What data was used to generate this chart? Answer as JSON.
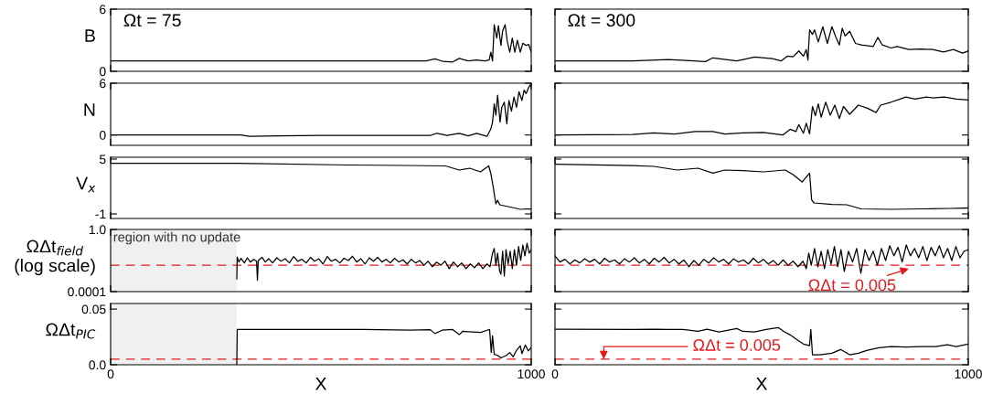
{
  "chart_data": [
    {
      "type": "line",
      "ylabel": "B",
      "annotations": [
        "Ωt = 75"
      ],
      "xlim": [
        0,
        1000
      ],
      "xticks": [
        0,
        1000
      ],
      "ylim": [
        0,
        6
      ],
      "yticks": [
        0,
        6
      ],
      "tick_labels": "y",
      "x": [
        0,
        300,
        600,
        700,
        750,
        771,
        790,
        813,
        829,
        850,
        870,
        890,
        900,
        904,
        908,
        912,
        918,
        922,
        928,
        932,
        938,
        943,
        949,
        955,
        961,
        967,
        974,
        980,
        988,
        994,
        1000
      ],
      "series": [
        {
          "color": "#000000",
          "values": [
            1,
            1,
            1,
            1,
            1,
            1.2,
            0.95,
            0.9,
            1.25,
            1,
            1.1,
            1,
            1.1,
            1.85,
            1,
            4.5,
            3.2,
            4.4,
            2.5,
            3.9,
            4.5,
            2.9,
            1.85,
            3.2,
            1.85,
            3,
            1.85,
            2.7,
            2.5,
            2.6,
            1.85
          ]
        }
      ]
    },
    {
      "type": "line",
      "annotations": [
        "Ωt = 300"
      ],
      "xlim": [
        0,
        1000
      ],
      "xticks": [
        0,
        1000
      ],
      "ylim": [
        0,
        6
      ],
      "yticks": [
        0,
        6
      ],
      "tick_labels": false,
      "x": [
        0,
        188,
        231,
        274,
        364,
        382,
        440,
        483,
        526,
        547,
        562,
        576,
        590,
        601,
        608,
        612,
        616,
        623,
        628,
        637,
        648,
        659,
        670,
        680,
        688,
        695,
        702,
        713,
        727,
        741,
        770,
        781,
        792,
        813,
        828,
        856,
        885,
        914,
        940,
        964,
        986,
        1000
      ],
      "series": [
        {
          "color": "#000000",
          "values": [
            1.0,
            1.0,
            1.08,
            1.14,
            0.94,
            1.3,
            1.0,
            1.37,
            1.23,
            1.0,
            1.46,
            1.4,
            1.96,
            1.46,
            2.1,
            1.08,
            4.0,
            3.57,
            4.0,
            2.84,
            4.3,
            2.69,
            4.3,
            3.27,
            2.54,
            4.15,
            3.42,
            3.86,
            2.69,
            2.54,
            2.4,
            3.27,
            2.54,
            2.25,
            2.4,
            2.1,
            2.16,
            2.1,
            1.87,
            2.1,
            1.75,
            1.96
          ]
        }
      ]
    },
    {
      "type": "line",
      "ylabel": "N",
      "xlim": [
        0,
        1000
      ],
      "xticks": [
        0,
        1000
      ],
      "ylim": [
        -1.2,
        6
      ],
      "yticks": [
        0,
        6
      ],
      "tick_labels": "y",
      "x": [
        0,
        300,
        309,
        330,
        400,
        500,
        600,
        700,
        760,
        776,
        800,
        829,
        850,
        870,
        895,
        904,
        908,
        912,
        916,
        920,
        926,
        930,
        936,
        942,
        947,
        953,
        959,
        965,
        971,
        978,
        983,
        988,
        993,
        1000
      ],
      "series": [
        {
          "color": "#000000",
          "values": [
            0,
            0,
            0,
            -0.15,
            -0.1,
            -0.05,
            -0.05,
            -0.05,
            -0.05,
            0.2,
            -0.05,
            0.2,
            -0.1,
            0.2,
            -0.15,
            0.7,
            1.5,
            3.6,
            2.3,
            4.6,
            1.5,
            3.2,
            3.8,
            1.3,
            4.0,
            2.75,
            4.4,
            3.2,
            5.0,
            4.0,
            5.2,
            4.8,
            5.4,
            6.0
          ]
        }
      ]
    },
    {
      "type": "line",
      "xlim": [
        0,
        1000
      ],
      "xticks": [
        0,
        1000
      ],
      "ylim": [
        -1.2,
        6
      ],
      "yticks": [
        0,
        6
      ],
      "tick_labels": false,
      "x": [
        0,
        188,
        239,
        289,
        339,
        382,
        411,
        454,
        504,
        551,
        569,
        583,
        590,
        601,
        608,
        616,
        623,
        630,
        637,
        644,
        655,
        666,
        677,
        688,
        698,
        713,
        734,
        756,
        777,
        788,
        813,
        835,
        849,
        871,
        899,
        914,
        942,
        971,
        1000
      ],
      "series": [
        {
          "color": "#000000",
          "values": [
            0,
            0.05,
            0.25,
            0.1,
            0.4,
            0.4,
            0.1,
            0.25,
            0.3,
            0,
            0.66,
            0.4,
            1.2,
            0.2,
            1.36,
            0.14,
            3.3,
            2.24,
            3.6,
            2.06,
            3.8,
            2.3,
            3.46,
            1.9,
            3.3,
            2.4,
            3.46,
            3.1,
            2.6,
            3.46,
            3.8,
            4.16,
            4.4,
            4.15,
            4.4,
            4.3,
            4.4,
            4.15,
            4.05
          ]
        }
      ]
    },
    {
      "type": "line",
      "ylabel": "V$_{x}$",
      "xlim": [
        0,
        1000
      ],
      "xticks": [
        0,
        1000
      ],
      "ylim": [
        -1.5,
        5.2
      ],
      "yticks": [
        -1,
        5
      ],
      "tick_labels": "y",
      "x": [
        0,
        300,
        565,
        700,
        796,
        829,
        854,
        879,
        899,
        904,
        910,
        913,
        916,
        920,
        925,
        935,
        945,
        960,
        975,
        990,
        1000
      ],
      "series": [
        {
          "color": "#000000",
          "values": [
            4.55,
            4.55,
            4.35,
            4.3,
            4.25,
            3.8,
            4.0,
            3.6,
            4.25,
            3.4,
            1.85,
            0.9,
            0.1,
            0.5,
            0.0,
            -0.1,
            -0.2,
            -0.35,
            -0.5,
            -0.45,
            -0.45
          ]
        }
      ]
    },
    {
      "type": "line",
      "xlim": [
        0,
        1000
      ],
      "xticks": [
        0,
        1000
      ],
      "ylim": [
        -1.5,
        5.2
      ],
      "yticks": [
        -1,
        5
      ],
      "tick_labels": false,
      "x": [
        0,
        188,
        239,
        296,
        346,
        382,
        411,
        454,
        504,
        557,
        576,
        598,
        616,
        621,
        627,
        670,
        706,
        741,
        813,
        885,
        957,
        1000
      ],
      "series": [
        {
          "color": "#000000",
          "values": [
            4.45,
            4.28,
            4.2,
            3.8,
            4.0,
            3.47,
            3.8,
            3.73,
            3.6,
            3.8,
            3.3,
            2.49,
            3.47,
            0.53,
            0.2,
            0.04,
            0.0,
            -0.45,
            -0.5,
            -0.45,
            -0.4,
            -0.35
          ]
        }
      ]
    },
    {
      "type": "line",
      "ylabel": "ΩΔt$_{field}$\n(log scale)",
      "log": "y",
      "xlim": [
        0,
        1000
      ],
      "xticks": [
        0,
        1000
      ],
      "ylim": [
        0.0001,
        1
      ],
      "yticks": [
        0.0001,
        {
          "value": 1,
          "label": "1.0"
        }
      ],
      "tick_labels": "y",
      "bands": [
        {
          "axis": "x",
          "from": 0,
          "to": 300,
          "label": "region with no update",
          "color": "#f0f0f0"
        }
      ],
      "ref_lines": [
        {
          "axis": "y",
          "value": 0.005,
          "color": "#e41a1c",
          "line_style": "dashed"
        }
      ],
      "x": [
        300,
        301,
        305,
        310,
        318,
        325,
        332,
        340,
        347,
        349,
        351,
        360,
        368,
        376,
        385,
        395,
        405,
        415,
        425,
        435,
        445,
        455,
        465,
        475,
        485,
        495,
        505,
        515,
        525,
        535,
        545,
        555,
        565,
        575,
        585,
        595,
        605,
        615,
        625,
        635,
        645,
        655,
        665,
        675,
        685,
        695,
        705,
        715,
        725,
        735,
        745,
        755,
        765,
        775,
        785,
        795,
        805,
        815,
        825,
        835,
        845,
        855,
        865,
        875,
        885,
        895,
        902,
        908,
        912,
        916,
        920,
        925,
        928,
        932,
        936,
        940,
        945,
        950,
        955,
        960,
        965,
        970,
        975,
        980,
        985,
        990,
        995,
        1000
      ],
      "series": [
        {
          "color": "#000000",
          "values": [
            0.00066,
            0.017,
            0.008,
            0.014,
            0.007,
            0.015,
            0.008,
            0.012,
            0.009,
            0.00054,
            0.01,
            0.016,
            0.008,
            0.013,
            0.007,
            0.015,
            0.009,
            0.013,
            0.007,
            0.018,
            0.009,
            0.012,
            0.007,
            0.016,
            0.009,
            0.013,
            0.006,
            0.018,
            0.009,
            0.012,
            0.007,
            0.014,
            0.01,
            0.019,
            0.008,
            0.013,
            0.006,
            0.015,
            0.009,
            0.016,
            0.008,
            0.012,
            0.007,
            0.014,
            0.008,
            0.011,
            0.006,
            0.012,
            0.007,
            0.01,
            0.005,
            0.009,
            0.004,
            0.008,
            0.005,
            0.009,
            0.003,
            0.008,
            0.004,
            0.007,
            0.003,
            0.006,
            0.0035,
            0.007,
            0.003,
            0.006,
            0.004,
            0.03,
            0.06,
            0.005,
            0.03,
            0.002,
            0.0013,
            0.04,
            0.001,
            0.05,
            0.006,
            0.04,
            0.003,
            0.05,
            0.005,
            0.08,
            0.01,
            0.1,
            0.02,
            0.13,
            0.03,
            0.05
          ]
        }
      ]
    },
    {
      "type": "line",
      "log": "y",
      "xlim": [
        0,
        1000
      ],
      "xticks": [
        0,
        1000
      ],
      "ylim": [
        0.0001,
        1
      ],
      "yticks": [
        0.0001,
        1
      ],
      "tick_labels": false,
      "ref_lines": [
        {
          "axis": "y",
          "value": 0.005,
          "color": "#e41a1c",
          "line_style": "dashed"
        }
      ],
      "annotations": [
        {
          "text": "ΩΔt = 0.005",
          "x": 856,
          "y": 0.003
        }
      ],
      "x": [
        0,
        12,
        24,
        36,
        48,
        60,
        72,
        84,
        96,
        108,
        120,
        132,
        144,
        156,
        168,
        180,
        192,
        204,
        216,
        228,
        240,
        252,
        264,
        276,
        288,
        300,
        312,
        324,
        336,
        348,
        360,
        372,
        384,
        396,
        408,
        420,
        432,
        444,
        456,
        468,
        480,
        492,
        504,
        516,
        528,
        540,
        552,
        564,
        576,
        588,
        600,
        608,
        614,
        620,
        628,
        636,
        644,
        652,
        660,
        668,
        676,
        684,
        692,
        700,
        710,
        720,
        730,
        740,
        750,
        760,
        770,
        780,
        790,
        800,
        810,
        820,
        830,
        840,
        850,
        860,
        870,
        880,
        890,
        900,
        910,
        920,
        930,
        940,
        950,
        960,
        970,
        980,
        990,
        1000
      ],
      "series": [
        {
          "color": "#000000",
          "values": [
            0.02,
            0.008,
            0.012,
            0.006,
            0.011,
            0.007,
            0.013,
            0.008,
            0.012,
            0.006,
            0.014,
            0.008,
            0.011,
            0.006,
            0.013,
            0.008,
            0.015,
            0.007,
            0.012,
            0.006,
            0.014,
            0.008,
            0.016,
            0.007,
            0.012,
            0.006,
            0.011,
            0.004,
            0.01,
            0.005,
            0.012,
            0.007,
            0.015,
            0.008,
            0.012,
            0.006,
            0.013,
            0.008,
            0.011,
            0.006,
            0.014,
            0.007,
            0.012,
            0.006,
            0.01,
            0.005,
            0.011,
            0.005,
            0.009,
            0.004,
            0.009,
            0.003,
            0.03,
            0.005,
            0.06,
            0.004,
            0.04,
            0.003,
            0.05,
            0.006,
            0.08,
            0.004,
            0.05,
            0.002,
            0.04,
            0.008,
            0.06,
            0.0015,
            0.05,
            0.01,
            0.04,
            0.005,
            0.06,
            0.01,
            0.09,
            0.02,
            0.07,
            0.008,
            0.1,
            0.02,
            0.06,
            0.015,
            0.08,
            0.01,
            0.07,
            0.02,
            0.09,
            0.015,
            0.06,
            0.01,
            0.08,
            0.015,
            0.04,
            0.05
          ]
        }
      ]
    },
    {
      "type": "line",
      "ylabel": "ΩΔt$_{PIC}$",
      "xlabel": "X",
      "xlim": [
        0,
        1000
      ],
      "xticks": [
        0,
        1000
      ],
      "ylim": [
        0,
        0.055
      ],
      "yticks": [
        {
          "value": 0,
          "label": "0.0"
        },
        0.05
      ],
      "bands": [
        {
          "axis": "x",
          "from": 0,
          "to": 300,
          "color": "#f0f0f0"
        }
      ],
      "ref_lines": [
        {
          "axis": "y",
          "value": 0.005,
          "color": "#e41a1c",
          "line_style": "dashed"
        }
      ],
      "x": [
        300,
        301,
        400,
        500,
        600,
        714,
        760,
        771,
        788,
        813,
        829,
        837,
        880,
        895,
        901,
        905,
        908,
        912,
        920,
        928,
        941,
        949,
        957,
        965,
        974,
        978,
        986,
        993,
        1000
      ],
      "series": [
        {
          "color": "#000000",
          "values": [
            0.0,
            0.0317,
            0.0317,
            0.0317,
            0.0317,
            0.031,
            0.0315,
            0.028,
            0.031,
            0.0317,
            0.027,
            0.03,
            0.029,
            0.031,
            0.0317,
            0.011,
            0.026,
            0.0093,
            0.0084,
            0.0062,
            0.0084,
            0.011,
            0.0071,
            0.013,
            0.017,
            0.01,
            0.0177,
            0.0124,
            0.0155
          ]
        }
      ]
    },
    {
      "type": "line",
      "xlabel": "X",
      "xlim": [
        0,
        1000
      ],
      "xticks": [
        0,
        1000
      ],
      "ylim": [
        0,
        0.055
      ],
      "yticks": [
        0,
        0.05
      ],
      "tick_labels": "x",
      "ref_lines": [
        {
          "axis": "y",
          "value": 0.005,
          "color": "#e41a1c",
          "line_style": "dashed"
        }
      ],
      "annotations": [
        {
          "text": "ΩΔt = 0.005",
          "x": 118,
          "y": 0.005
        }
      ],
      "x": [
        0,
        188,
        239,
        274,
        310,
        346,
        368,
        397,
        440,
        454,
        483,
        511,
        540,
        555,
        569,
        590,
        601,
        616,
        619,
        623,
        641,
        670,
        691,
        713,
        734,
        756,
        784,
        813,
        849,
        885,
        921,
        949,
        971,
        1000
      ],
      "series": [
        {
          "color": "#000000",
          "values": [
            0.032,
            0.0317,
            0.032,
            0.0317,
            0.0317,
            0.03,
            0.032,
            0.0295,
            0.0325,
            0.03,
            0.0295,
            0.0317,
            0.0334,
            0.0295,
            0.0268,
            0.0213,
            0.0186,
            0.0172,
            0.0317,
            0.009,
            0.009,
            0.0104,
            0.0137,
            0.009,
            0.0104,
            0.013,
            0.0153,
            0.0164,
            0.016,
            0.0164,
            0.0164,
            0.018,
            0.0164,
            0.0186
          ]
        }
      ]
    }
  ]
}
